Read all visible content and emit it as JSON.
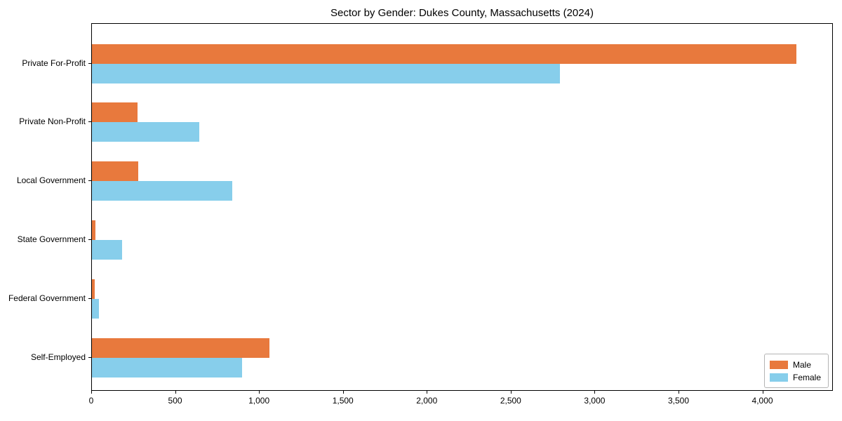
{
  "chart_data": {
    "type": "bar",
    "orientation": "horizontal",
    "title": "Sector by Gender: Dukes County, Massachusetts (2024)",
    "categories": [
      "Private For-Profit",
      "Private Non-Profit",
      "Local Government",
      "State Government",
      "Federal Government",
      "Self-Employed"
    ],
    "series": [
      {
        "name": "Male",
        "color": "#e8793d",
        "values": [
          4200,
          270,
          275,
          20,
          15,
          1060
        ]
      },
      {
        "name": "Female",
        "color": "#87ceeb",
        "values": [
          2790,
          640,
          835,
          180,
          40,
          895
        ]
      }
    ],
    "xlabel": "",
    "ylabel": "",
    "xlim": [
      0,
      4420
    ],
    "xticks": [
      {
        "value": 0,
        "label": "0"
      },
      {
        "value": 500,
        "label": "500"
      },
      {
        "value": 1000,
        "label": "1,000"
      },
      {
        "value": 1500,
        "label": "1,500"
      },
      {
        "value": 2000,
        "label": "2,000"
      },
      {
        "value": 2500,
        "label": "2,500"
      },
      {
        "value": 3000,
        "label": "3,000"
      },
      {
        "value": 3500,
        "label": "3,500"
      },
      {
        "value": 4000,
        "label": "4,000"
      }
    ],
    "grid": false,
    "legend_position": "lower right",
    "legend_labels": [
      "Male",
      "Female"
    ]
  }
}
